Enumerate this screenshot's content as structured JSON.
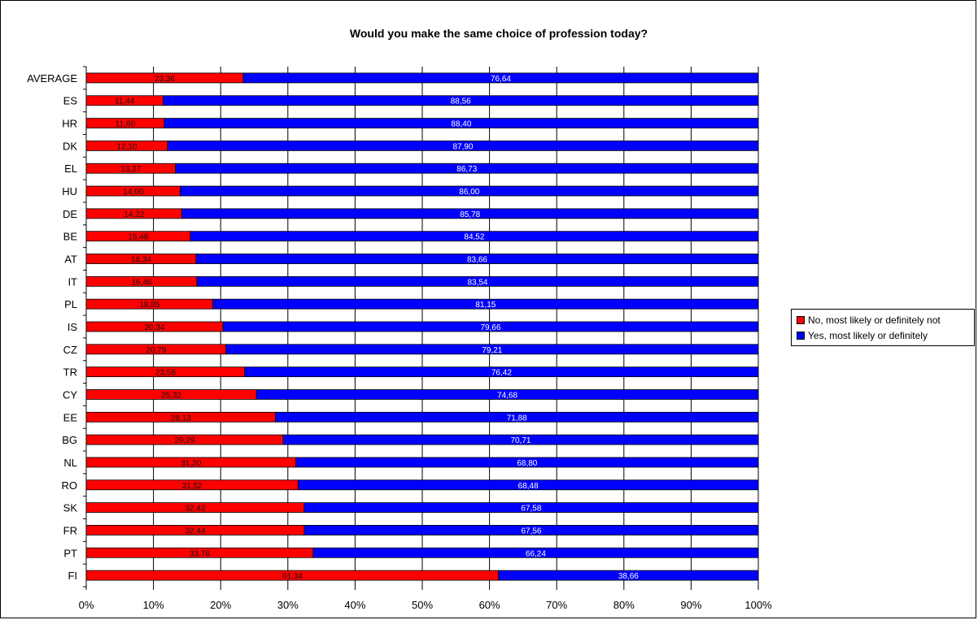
{
  "chart_data": {
    "type": "bar",
    "orientation": "horizontal",
    "stacked": "percent",
    "title": "Would you make the same choice of profession today?",
    "categories": [
      "AVERAGE",
      "ES",
      "HR",
      "DK",
      "EL",
      "HU",
      "DE",
      "BE",
      "AT",
      "IT",
      "PL",
      "IS",
      "CZ",
      "TR",
      "CY",
      "EE",
      "BG",
      "NL",
      "RO",
      "SK",
      "FR",
      "PT",
      "FI"
    ],
    "series": [
      {
        "name": "No, most likely or definitely not",
        "color": "#ff0000",
        "values": [
          23.36,
          11.44,
          11.6,
          12.1,
          13.27,
          14.0,
          14.22,
          15.48,
          16.34,
          16.46,
          18.85,
          20.34,
          20.79,
          23.58,
          25.32,
          28.13,
          29.29,
          31.2,
          31.52,
          32.42,
          32.44,
          33.76,
          61.34
        ],
        "labels": [
          "23,36",
          "11,44",
          "11,60",
          "12,10",
          "13,27",
          "14,00",
          "14,22",
          "15,48",
          "16,34",
          "16,46",
          "18,85",
          "20,34",
          "20,79",
          "23,58",
          "25,32",
          "28,13",
          "29,29",
          "31,20",
          "31,52",
          "32,42",
          "32,44",
          "33,76",
          "61,34"
        ]
      },
      {
        "name": "Yes, most likely or definitely",
        "color": "#0000ff",
        "values": [
          76.64,
          88.56,
          88.4,
          87.9,
          86.73,
          86.0,
          85.78,
          84.52,
          83.66,
          83.54,
          81.15,
          79.66,
          79.21,
          76.42,
          74.68,
          71.88,
          70.71,
          68.8,
          68.48,
          67.58,
          67.56,
          66.24,
          38.66
        ],
        "labels": [
          "76,64",
          "88,56",
          "88,40",
          "87,90",
          "86,73",
          "86,00",
          "85,78",
          "84,52",
          "83,66",
          "83,54",
          "81,15",
          "79,66",
          "79,21",
          "76,42",
          "74,68",
          "71,88",
          "70,71",
          "68,80",
          "68,48",
          "67,58",
          "67,56",
          "66,24",
          "38,66"
        ]
      }
    ],
    "x_ticks": [
      "0%",
      "10%",
      "20%",
      "30%",
      "40%",
      "50%",
      "60%",
      "70%",
      "80%",
      "90%",
      "100%"
    ],
    "xlim": [
      0,
      100
    ],
    "grid": true,
    "legend_position": "right"
  }
}
